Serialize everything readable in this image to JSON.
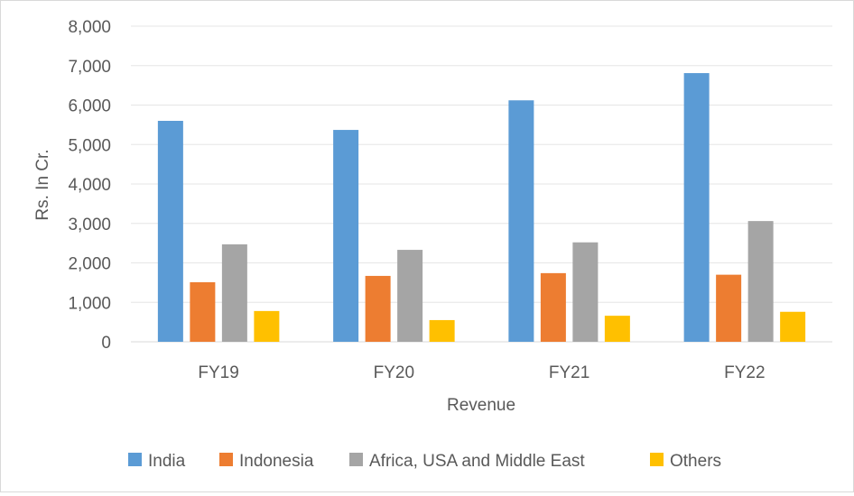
{
  "chart_data": {
    "type": "bar",
    "title": "",
    "xlabel": "Revenue",
    "ylabel": "Rs. In Cr.",
    "ylim": [
      0,
      8000
    ],
    "yticks": [
      0,
      1000,
      2000,
      3000,
      4000,
      5000,
      6000,
      7000,
      8000
    ],
    "ytick_labels": [
      "0",
      "1,000",
      "2,000",
      "3,000",
      "4,000",
      "5,000",
      "6,000",
      "7,000",
      "8,000"
    ],
    "categories": [
      "FY19",
      "FY20",
      "FY21",
      "FY22"
    ],
    "grid": true,
    "legend_position": "bottom",
    "series": [
      {
        "name": "India",
        "color": "#5b9bd5",
        "values": [
          5600,
          5370,
          6120,
          6810
        ]
      },
      {
        "name": "Indonesia",
        "color": "#ed7d31",
        "values": [
          1510,
          1670,
          1740,
          1700
        ]
      },
      {
        "name": "Africa, USA and Middle East",
        "color": "#a5a5a5",
        "values": [
          2470,
          2330,
          2520,
          3060
        ]
      },
      {
        "name": "Others",
        "color": "#ffc000",
        "values": [
          780,
          550,
          660,
          760
        ]
      }
    ]
  }
}
